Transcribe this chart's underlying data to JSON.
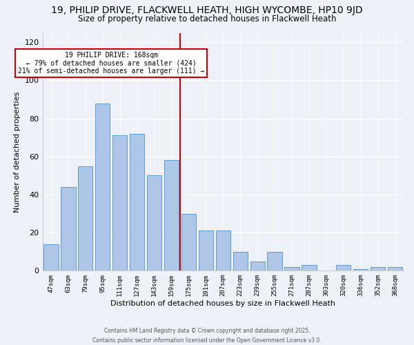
{
  "title1": "19, PHILIP DRIVE, FLACKWELL HEATH, HIGH WYCOMBE, HP10 9JD",
  "title2": "Size of property relative to detached houses in Flackwell Heath",
  "xlabel": "Distribution of detached houses by size in Flackwell Heath",
  "ylabel": "Number of detached properties",
  "bar_labels": [
    "47sqm",
    "63sqm",
    "79sqm",
    "95sqm",
    "111sqm",
    "127sqm",
    "143sqm",
    "159sqm",
    "175sqm",
    "191sqm",
    "207sqm",
    "223sqm",
    "239sqm",
    "255sqm",
    "271sqm",
    "287sqm",
    "303sqm",
    "320sqm",
    "336sqm",
    "352sqm",
    "368sqm"
  ],
  "bar_values": [
    14,
    44,
    55,
    88,
    71,
    72,
    50,
    58,
    30,
    21,
    21,
    10,
    5,
    10,
    2,
    3,
    0,
    3,
    1,
    2,
    2
  ],
  "bar_color": "#aec6e8",
  "bar_edge_color": "#5b9bd5",
  "reference_line_color": "#cc0000",
  "annotation_title": "19 PHILIP DRIVE: 168sqm",
  "annotation_line1": "← 79% of detached houses are smaller (424)",
  "annotation_line2": "21% of semi-detached houses are larger (111) →",
  "annotation_box_color": "#ffffff",
  "annotation_box_edge": "#cc0000",
  "ylim": [
    0,
    125
  ],
  "yticks": [
    0,
    20,
    40,
    60,
    80,
    100,
    120
  ],
  "footer1": "Contains HM Land Registry data © Crown copyright and database right 2025.",
  "footer2": "Contains public sector information licensed under the Open Government Licence v3.0.",
  "background_color": "#eef2f8",
  "title1_fontsize": 10,
  "title2_fontsize": 8.5
}
